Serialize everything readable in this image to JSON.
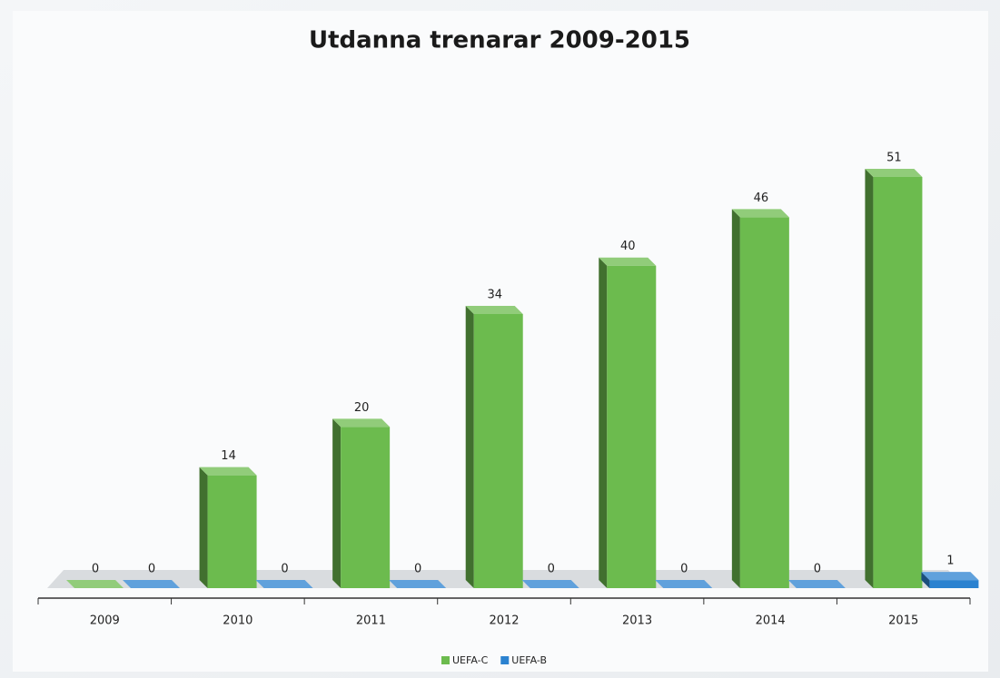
{
  "chart_data": {
    "type": "bar3d",
    "title": "Utdanna trenarar 2009-2015",
    "categories": [
      "2009",
      "2010",
      "2011",
      "2012",
      "2013",
      "2014",
      "2015"
    ],
    "series": [
      {
        "name": "UEFA-C",
        "color": "#6cbb4e",
        "values": [
          0,
          14,
          20,
          34,
          40,
          46,
          51
        ]
      },
      {
        "name": "UEFA-B",
        "color": "#2b82d0",
        "values": [
          0,
          0,
          0,
          0,
          0,
          0,
          1
        ]
      }
    ],
    "legend": "bottom"
  }
}
